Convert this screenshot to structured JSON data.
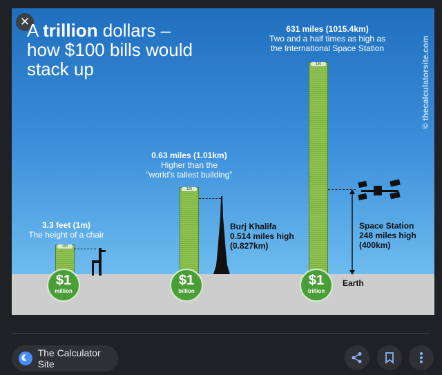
{
  "headline": {
    "pre": "A ",
    "bold": "trillion",
    "post": " dollars –",
    "line2": "how $100 bills would",
    "line3": "stack up"
  },
  "watermark": "© thecalculatorsite.com",
  "stacks": [
    {
      "coin_amount": "$1",
      "coin_unit": "million",
      "label_title": "3.3 feet (1m)",
      "label_sub": "The height of a chair",
      "note": "100"
    },
    {
      "coin_amount": "$1",
      "coin_unit": "billion",
      "label_title": "0.63 miles (1.01km)",
      "label_sub": "Higher than the",
      "label_sub2": "“world’s tallest building”",
      "note": "100"
    },
    {
      "coin_amount": "$1",
      "coin_unit": "trillion",
      "label_title": "631 miles (1015.4km)",
      "label_sub": "Two and a half times as high as",
      "label_sub2": "the International Space Station",
      "note": "100"
    }
  ],
  "burj": {
    "name": "Burj Khalifa",
    "line2": "0.514 miles high",
    "line3": "(0.827km)"
  },
  "iss": {
    "name": "Space Station",
    "line2": "248 miles high",
    "line3": "(400km)"
  },
  "earth_label": "Earth",
  "footer": {
    "source_name": "The Calculator Site"
  },
  "icons": {
    "close": "close-icon",
    "share": "share-icon",
    "bookmark": "bookmark-icon",
    "more": "more-vert-icon"
  },
  "colors": {
    "bar_green": "#7ab03f",
    "coin_green": "#4a9e37",
    "sky": "#3c8fda"
  }
}
